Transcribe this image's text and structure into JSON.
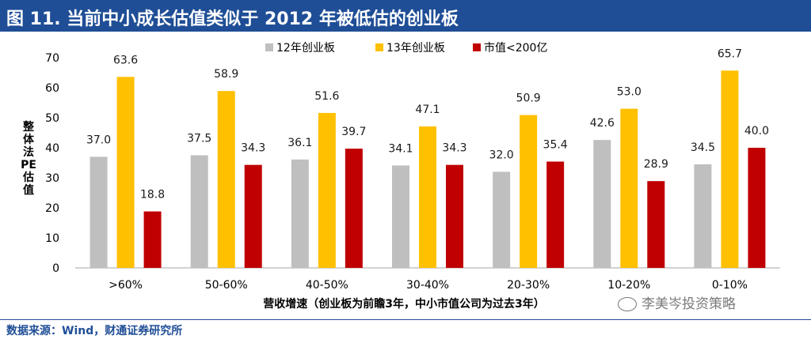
{
  "header": {
    "title": "图 11. 当前中小成长估值类似于 2012 年被低估的创业板"
  },
  "footer": {
    "source": "数据来源：Wind，财通证券研究所",
    "watermark": "李美岑投资策略"
  },
  "chart_data": {
    "type": "bar",
    "title": "",
    "xlabel": "营收增速（创业板为前瞻3年，中小市值公司为过去3年）",
    "ylabel": "整体法PE估值",
    "ylim": [
      0,
      70
    ],
    "yticks": [
      0,
      10,
      20,
      30,
      40,
      50,
      60,
      70
    ],
    "grid": false,
    "legend_position": "top-center",
    "categories": [
      ">60%",
      "50-60%",
      "40-50%",
      "30-40%",
      "20-30%",
      "10-20%",
      "0-10%"
    ],
    "series": [
      {
        "name": "12年创业板",
        "color": "#bfbfbf",
        "values": [
          37.0,
          37.5,
          36.1,
          34.1,
          32.0,
          42.6,
          34.5
        ]
      },
      {
        "name": "13年创业板",
        "color": "#ffc000",
        "values": [
          63.6,
          58.9,
          51.6,
          47.1,
          50.9,
          53.0,
          65.7
        ]
      },
      {
        "name": "市值<200亿",
        "color": "#c00000",
        "values": [
          18.8,
          34.3,
          39.7,
          34.3,
          35.4,
          28.9,
          40.0
        ]
      }
    ]
  }
}
